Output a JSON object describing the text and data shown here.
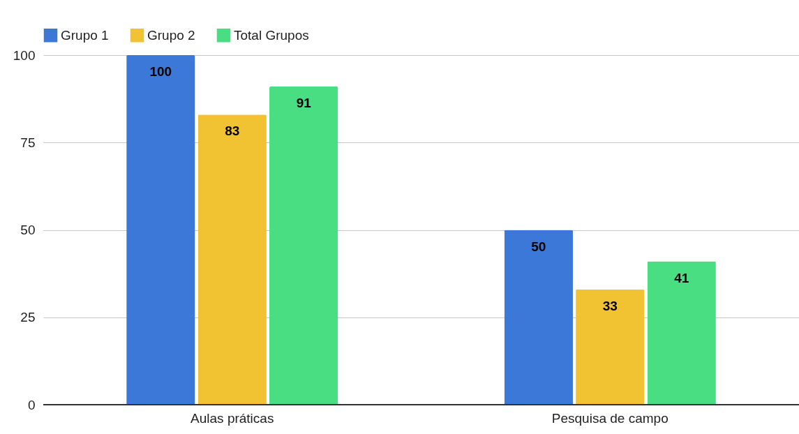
{
  "chart_data": {
    "type": "bar",
    "categories": [
      "Aulas práticas",
      "Pesquisa de campo"
    ],
    "series": [
      {
        "name": "Grupo 1",
        "color": "#3c78d8",
        "values": [
          100,
          50
        ]
      },
      {
        "name": "Grupo 2",
        "color": "#f1c232",
        "values": [
          83,
          33
        ]
      },
      {
        "name": "Total Grupos",
        "color": "#4ade83",
        "values": [
          91,
          41
        ]
      }
    ],
    "ylim": [
      0,
      100
    ],
    "yticks": [
      0,
      25,
      50,
      75,
      100
    ],
    "grid": "y",
    "legend": "top",
    "data_labels": true
  }
}
